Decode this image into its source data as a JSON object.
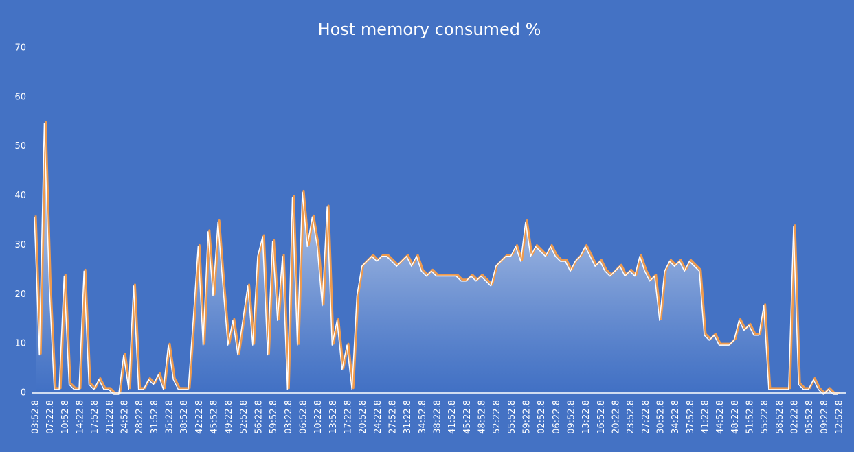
{
  "chart_data": {
    "type": "area",
    "title": "Host memory consumed %",
    "color": "#ed9a4e",
    "categories": [
      "03:52.8",
      null,
      null,
      "07:22.8",
      null,
      null,
      "10:52.8",
      null,
      null,
      "14:22.8",
      null,
      null,
      "17:52.8",
      null,
      null,
      "21:22.8",
      null,
      null,
      "24:52.8",
      null,
      null,
      "28:22.8",
      null,
      null,
      "31:52.8",
      null,
      null,
      "35:22.8",
      null,
      null,
      "38:52.8",
      null,
      null,
      "42:22.8",
      null,
      null,
      "45:52.8",
      null,
      null,
      "49:22.8",
      null,
      null,
      "52:52.8",
      null,
      null,
      "56:22.8",
      null,
      null,
      "59:52.8",
      null,
      null,
      "03:22.8",
      null,
      null,
      "06:52.8",
      null,
      null,
      "10:22.8",
      null,
      null,
      "13:52.8",
      null,
      null,
      "17:22.8",
      null,
      null,
      "20:52.8",
      null,
      null,
      "24:22.8",
      null,
      null,
      "27:52.8",
      null,
      null,
      "31:22.8",
      null,
      null,
      "34:52.8",
      null,
      null,
      "38:22.8",
      null,
      null,
      "41:52.8",
      null,
      null,
      "45:22.8",
      null,
      null,
      "48:52.8",
      null,
      null,
      "52:22.8",
      null,
      null,
      "55:52.8",
      null,
      null,
      "59:22.8",
      null,
      null,
      "02:52.8",
      null,
      null,
      "06:22.8",
      null,
      null,
      "09:52.8",
      null,
      null,
      "13:22.8",
      null,
      null,
      "16:52.8",
      null,
      null,
      "20:22.8",
      null,
      null,
      "23:52.8",
      null,
      null,
      "27:22.8",
      null,
      null,
      "30:52.8",
      null,
      null,
      "34:22.8",
      null,
      null,
      "37:52.8",
      null,
      null,
      "41:22.8",
      null,
      null,
      "44:52.8",
      null,
      null,
      "48:22.8",
      null,
      null,
      "51:52.8",
      null,
      null,
      "55:22.8",
      null,
      null,
      "58:52.8",
      null,
      null,
      "02:22.8",
      null,
      null,
      "05:52.8",
      null,
      null,
      "09:22.8",
      null,
      null,
      "12:52.8"
    ],
    "values": [
      36,
      8,
      55,
      22,
      1,
      1,
      24,
      2,
      1,
      1,
      25,
      2,
      1,
      3,
      1,
      1,
      0,
      0,
      8,
      1,
      22,
      1,
      1,
      3,
      2,
      4,
      1,
      10,
      3,
      1,
      1,
      1,
      15,
      30,
      10,
      33,
      20,
      35,
      22,
      10,
      15,
      8,
      15,
      22,
      10,
      28,
      32,
      8,
      31,
      15,
      28,
      1,
      40,
      10,
      41,
      30,
      36,
      30,
      18,
      38,
      10,
      15,
      5,
      10,
      1,
      20,
      26,
      27,
      28,
      27,
      28,
      28,
      27,
      26,
      27,
      28,
      26,
      28,
      25,
      24,
      25,
      24,
      24,
      24,
      24,
      24,
      23,
      23,
      24,
      23,
      24,
      23,
      22,
      26,
      27,
      28,
      28,
      30,
      27,
      35,
      28,
      30,
      29,
      28,
      30,
      28,
      27,
      27,
      25,
      27,
      28,
      30,
      28,
      26,
      27,
      25,
      24,
      25,
      26,
      24,
      25,
      24,
      28,
      25,
      23,
      24,
      15,
      25,
      27,
      26,
      27,
      25,
      27,
      26,
      25,
      12,
      11,
      12,
      10,
      10,
      10,
      11,
      15,
      13,
      14,
      12,
      12,
      18,
      1,
      1,
      1,
      1,
      1,
      34,
      2,
      1,
      1,
      3,
      1,
      0,
      1,
      0,
      0
    ],
    "ylim": [
      0,
      70
    ],
    "yticks": [
      0,
      10,
      20,
      30,
      40,
      50,
      60,
      70
    ]
  }
}
